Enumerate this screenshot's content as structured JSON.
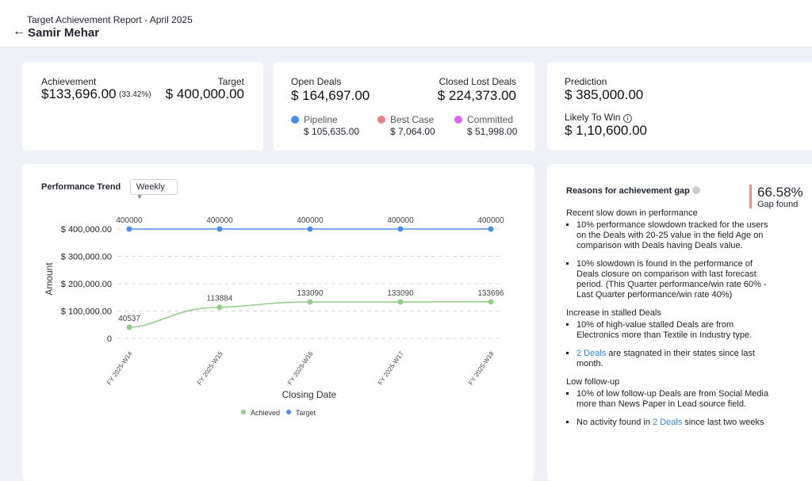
{
  "header": {
    "subtitle": "Target Achievement Report - April 2025",
    "title": "Samir Mehar"
  },
  "achievement_card": {
    "label": "Achievement",
    "value": "$133,696.00",
    "percent": "(33.42%)",
    "target_label": "Target",
    "target_value": "$ 400,000.00"
  },
  "deals_card": {
    "open_label": "Open Deals",
    "open_value": "$ 164,697.00",
    "lost_label": "Closed Lost Deals",
    "lost_value": "$ 224,373.00",
    "breakdown": [
      {
        "name": "Pipeline",
        "color": "#4a8ff0",
        "value": "$ 105,635.00"
      },
      {
        "name": "Best Case",
        "color": "#f07f7f",
        "value": "$ 7,064.00"
      },
      {
        "name": "Committed",
        "color": "#d86aea",
        "value": "$ 51,998.00"
      }
    ]
  },
  "prediction_card": {
    "label": "Prediction",
    "value": "$ 385,000.00",
    "likely_label": "Likely To Win",
    "likely_value": "$ 1,10,600.00"
  },
  "chart_data": {
    "type": "line",
    "title": "Performance Trend",
    "filter": "Weekly",
    "xlabel": "Closing Date",
    "ylabel": "Amount",
    "categories": [
      "FY 2025-W14",
      "FY 2025-W15",
      "FY 2025-W16",
      "FY 2025-W17",
      "FY 2025-W18"
    ],
    "series": [
      {
        "name": "Achieved",
        "color": "#8fcf86",
        "values": [
          40537,
          113884,
          133090,
          133090,
          133696
        ]
      },
      {
        "name": "Target",
        "color": "#4a8ff0",
        "values": [
          400000,
          400000,
          400000,
          400000,
          400000
        ]
      }
    ],
    "ylim": [
      0,
      400000
    ],
    "yticks": [
      0,
      {
        "value": 100000,
        "label": "$ 100,000.00"
      },
      {
        "value": 200000,
        "label": "$ 200,000.00"
      },
      {
        "value": 300000,
        "label": "$ 300,000.00"
      },
      {
        "value": 400000,
        "label": "$ 400,000.00"
      }
    ],
    "grid": true,
    "legend": "bottom"
  },
  "reasons": {
    "title": "Reasons for achievement gap",
    "gap_value": "66.58%",
    "gap_label": "Gap found",
    "sections": [
      {
        "heading": "Recent slow down in performance",
        "items": [
          [
            {
              "text": "10% performance slowdown tracked for the users on the Deals with 20-25 value in the field Age on comparison with Deals having Deals value."
            }
          ],
          [
            {
              "text": "10% slowdown is found in the performance of Deals closure on comparison with last forecast period. (This Quarter performance/win rate 60% - Last Quarter performance/win rate 40%)"
            }
          ]
        ]
      },
      {
        "heading": "Increase in stalled Deals",
        "items": [
          [
            {
              "text": "10% of high-value stalled Deals are from Electronics more than Textile in Industry type."
            }
          ],
          [
            {
              "link": "2 Deals"
            },
            {
              "text": "are stagnated in their states since last month."
            }
          ]
        ]
      },
      {
        "heading": "Low follow-up",
        "items": [
          [
            {
              "text": "10% of low follow-up Deals are from Social Media more than News Paper in Lead source field."
            }
          ],
          [
            {
              "text": "No activity found in"
            },
            {
              "link": "2 Deals"
            },
            {
              "text": "since last two weeks"
            }
          ]
        ]
      }
    ]
  }
}
